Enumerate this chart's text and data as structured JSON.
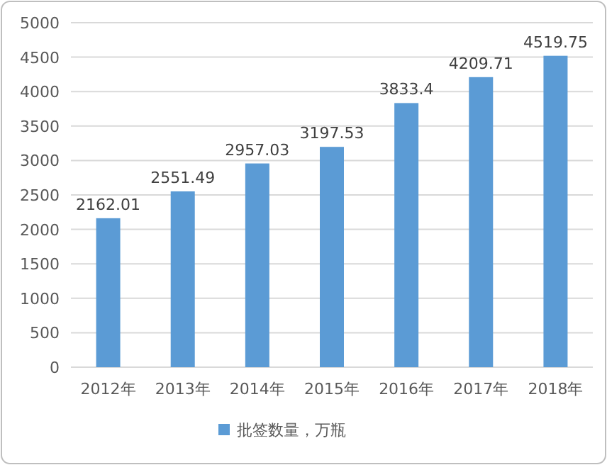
{
  "chart_data": {
    "type": "bar",
    "categories": [
      "2012年",
      "2013年",
      "2014年",
      "2015年",
      "2016年",
      "2017年",
      "2018年"
    ],
    "series": [
      {
        "name": "批签数量，万瓶",
        "color": "#5b9bd5",
        "values": [
          2162.01,
          2551.49,
          2957.03,
          3197.53,
          3833.4,
          4209.71,
          4519.75
        ]
      }
    ],
    "ylim": [
      0,
      5000
    ],
    "yticks": [
      0,
      500,
      1000,
      1500,
      2000,
      2500,
      3000,
      3500,
      4000,
      4500,
      5000
    ],
    "grid": "y",
    "legend": "bottom",
    "data_labels": true
  }
}
